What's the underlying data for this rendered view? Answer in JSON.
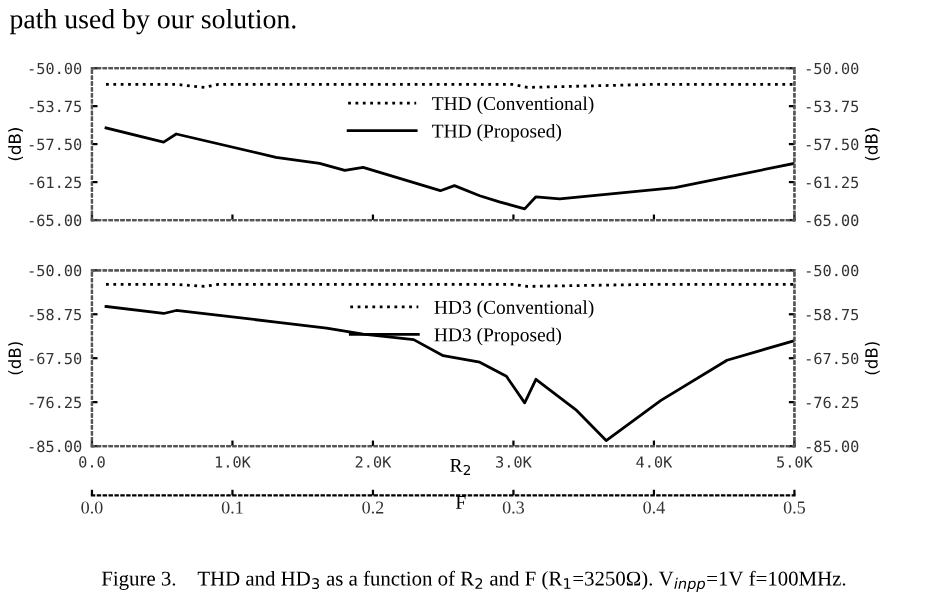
{
  "chart_data": [
    {
      "type": "line",
      "xlim": [
        0,
        5
      ],
      "xticks": [
        {
          "value": 0,
          "label": null
        },
        {
          "value": 1,
          "label": null
        },
        {
          "value": 2,
          "label": null
        },
        {
          "value": 3,
          "label": null
        },
        {
          "value": 4,
          "label": null
        },
        {
          "value": 5,
          "label": null
        }
      ],
      "ylim": [
        -65,
        -50
      ],
      "yticks": [
        {
          "value": -65,
          "label": "-65.00"
        },
        {
          "value": -61.25,
          "label": "-61.25"
        },
        {
          "value": -57.5,
          "label": "-57.50"
        },
        {
          "value": -53.75,
          "label": "-53.75"
        },
        {
          "value": -50,
          "label": "-50.00"
        }
      ],
      "y2lim": [
        -65,
        -50
      ],
      "y2ticks": [
        {
          "value": -65,
          "label": "-65.00"
        },
        {
          "value": -61.25,
          "label": "-61.25"
        },
        {
          "value": -57.5,
          "label": "-57.50"
        },
        {
          "value": -53.75,
          "label": "-53.75"
        },
        {
          "value": -50,
          "label": "-50.00"
        }
      ],
      "ylabel": "(dB)",
      "y2label": "(dB)",
      "tick_labels": "y",
      "legend": "top right",
      "grid": false,
      "annotations": [
        "path used by our solution."
      ],
      "series": [
        {
          "name": "THD (Conventional)",
          "color": "#000000",
          "line_style": "dotted",
          "x": [
            0.1,
            0.6,
            0.8,
            0.9,
            1.5,
            2.5,
            3.0,
            3.1,
            4.0,
            5.0
          ],
          "values": [
            -51.6,
            -51.6,
            -51.9,
            -51.6,
            -51.6,
            -51.6,
            -51.6,
            -51.9,
            -51.6,
            -51.6
          ]
        },
        {
          "name": "THD (Proposed)",
          "color": "#000000",
          "line_style": "solid",
          "x": [
            0.1,
            0.51,
            0.6,
            1.31,
            1.62,
            1.8,
            1.93,
            2.48,
            2.58,
            2.76,
            2.9,
            3.08,
            3.16,
            3.33,
            4.15,
            5.0
          ],
          "values": [
            -55.9,
            -57.3,
            -56.5,
            -58.8,
            -59.4,
            -60.1,
            -59.8,
            -62.1,
            -61.6,
            -62.6,
            -63.2,
            -63.9,
            -62.7,
            -62.9,
            -61.8,
            -59.4
          ]
        }
      ]
    },
    {
      "type": "line",
      "xlim": [
        0,
        5
      ],
      "xticks": [
        {
          "value": 0,
          "label": "0.0"
        },
        {
          "value": 1,
          "label": "1.0K"
        },
        {
          "value": 2,
          "label": "2.0K"
        },
        {
          "value": 3,
          "label": "3.0K"
        },
        {
          "value": 4,
          "label": "4.0K"
        },
        {
          "value": 5,
          "label": "5.0K"
        }
      ],
      "xlabel": "R$_{2}$",
      "x2lim": [
        0,
        0.5
      ],
      "x2ticks": [
        {
          "value": 0,
          "label": "0.0"
        },
        0.1,
        0.2,
        0.3,
        0.4,
        0.5
      ],
      "x2label": "F",
      "ylim": [
        -85,
        -50
      ],
      "yticks": [
        {
          "value": -85,
          "label": "-85.00"
        },
        {
          "value": -76.25,
          "label": "-76.25"
        },
        {
          "value": -67.5,
          "label": "-67.50"
        },
        {
          "value": -58.75,
          "label": "-58.75"
        },
        {
          "value": -50,
          "label": "-50.00"
        }
      ],
      "y2lim": [
        -85,
        -50
      ],
      "y2ticks": [
        {
          "value": -85,
          "label": "-85.00"
        },
        {
          "value": -76.25,
          "label": "-76.25"
        },
        {
          "value": -67.5,
          "label": "-67.50"
        },
        {
          "value": -58.75,
          "label": "-58.75"
        },
        {
          "value": -50,
          "label": "-50.00"
        }
      ],
      "ylabel": "(dB)",
      "y2label": "(dB)",
      "legend": "top right",
      "grid": false,
      "annotations": [
        "Figure 3.    THD and HD$_{3}$ as a function of R$_{2}$ and F (R$_{1}$=3250Ω). V$_{inpp}$=1V f=100MHz."
      ],
      "series": [
        {
          "name": "HD3 (Conventional)",
          "color": "#000000",
          "line_style": "dotted",
          "x": [
            0.1,
            0.6,
            0.8,
            0.9,
            1.5,
            2.5,
            3.0,
            3.1,
            4.0,
            5.0
          ],
          "values": [
            -52.8,
            -52.8,
            -53.2,
            -52.8,
            -52.8,
            -52.8,
            -52.8,
            -53.2,
            -52.8,
            -52.8
          ]
        },
        {
          "name": "HD3 (Proposed)",
          "color": "#000000",
          "line_style": "solid",
          "x": [
            0.1,
            0.51,
            0.6,
            1.31,
            1.67,
            1.93,
            2.29,
            2.5,
            2.76,
            2.95,
            3.08,
            3.16,
            3.45,
            3.66,
            4.05,
            4.52,
            5.0
          ],
          "values": [
            -57.2,
            -58.6,
            -58.0,
            -60.3,
            -61.5,
            -62.7,
            -63.8,
            -67.0,
            -68.3,
            -71.1,
            -76.4,
            -71.7,
            -77.9,
            -83.9,
            -75.9,
            -67.9,
            -64.0
          ]
        }
      ]
    }
  ]
}
